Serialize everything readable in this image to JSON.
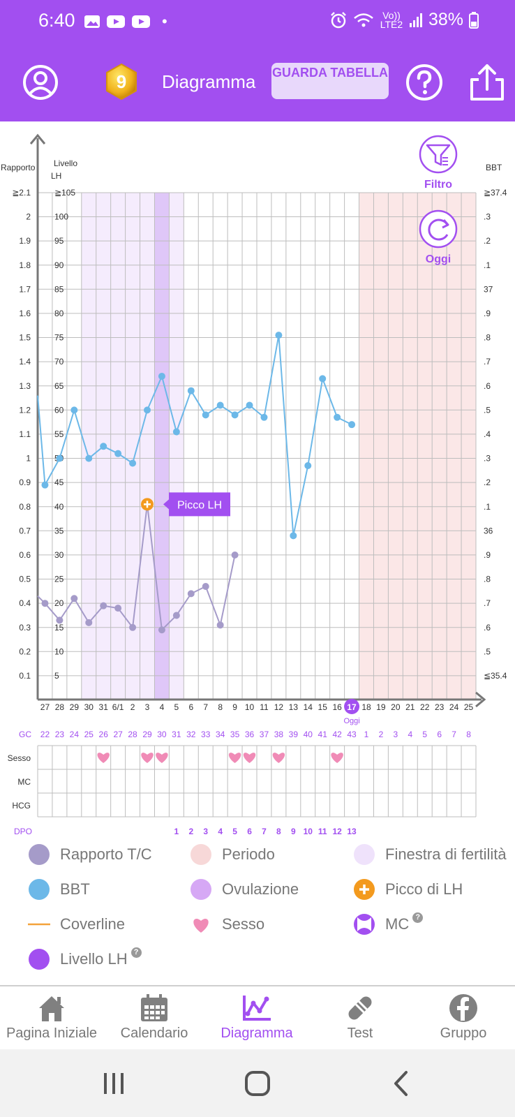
{
  "status_bar": {
    "time": "6:40",
    "dot": "•",
    "network": "Vo)) LTE2",
    "battery": "38%",
    "icons": [
      "gallery-icon",
      "youtube-icon",
      "youtube-icon",
      "alarm-icon",
      "wifi-icon",
      "signal-icon",
      "battery-icon"
    ]
  },
  "header": {
    "level_badge": "9",
    "title": "Diagramma",
    "table_button": "GUARDA TABELLA",
    "icons": [
      "profile-icon",
      "help-icon",
      "share-icon"
    ]
  },
  "chart": {
    "left_axis_title": "Rapporto",
    "lh_axis_title_1": "Livello",
    "lh_axis_title_2": "LH",
    "right_axis_title": "BBT",
    "ratio_ticks": [
      "≧2.1",
      "2",
      "1.9",
      "1.8",
      "1.7",
      "1.6",
      "1.5",
      "1.4",
      "1.3",
      "1.2",
      "1.1",
      "1",
      "0.9",
      "0.8",
      "0.7",
      "0.6",
      "0.5",
      "0.4",
      "0.3",
      "0.2",
      "0.1"
    ],
    "lh_ticks": [
      "≧105",
      "100",
      "95",
      "90",
      "85",
      "80",
      "75",
      "70",
      "65",
      "60",
      "55",
      "50",
      "45",
      "40",
      "35",
      "30",
      "25",
      "20",
      "15",
      "10",
      "5"
    ],
    "bbt_ticks": [
      "≧37.4",
      ".3",
      ".2",
      ".1",
      "37",
      ".9",
      ".8",
      ".7",
      ".6",
      ".5",
      ".4",
      ".3",
      ".2",
      ".1",
      "36",
      ".9",
      ".8",
      ".7",
      ".6",
      ".5",
      "≦35.4"
    ],
    "filter_label": "Filtro",
    "today_button_label": "Oggi",
    "lh_peak_label": "Picco LH",
    "dates": [
      "27",
      "28",
      "29",
      "30",
      "31",
      "6/1",
      "2",
      "3",
      "4",
      "5",
      "6",
      "7",
      "8",
      "9",
      "10",
      "11",
      "12",
      "13",
      "14",
      "15",
      "16",
      "17",
      "18",
      "19",
      "20",
      "21",
      "22",
      "23",
      "24",
      "25"
    ],
    "today_index": 21,
    "today_caption": "Oggi",
    "gc_label": "GC",
    "cycle_days": [
      "22",
      "23",
      "24",
      "25",
      "26",
      "27",
      "28",
      "29",
      "30",
      "31",
      "32",
      "33",
      "34",
      "35",
      "36",
      "37",
      "38",
      "39",
      "40",
      "41",
      "42",
      "43",
      "1",
      "2",
      "3",
      "4",
      "5",
      "6",
      "7",
      "8"
    ],
    "row_labels": [
      "Sesso",
      "MC",
      "HCG"
    ],
    "sex_days": [
      4,
      7,
      8,
      13,
      14,
      16,
      20
    ],
    "dpo_label": "DPO",
    "dpo_values": [
      "",
      "",
      "",
      "",
      "",
      "",
      "",
      "",
      "",
      "1",
      "2",
      "3",
      "4",
      "5",
      "6",
      "7",
      "8",
      "9",
      "10",
      "11",
      "12",
      "13",
      "",
      "",
      "",
      "",
      "",
      "",
      "",
      ""
    ],
    "fertile_window_days": [
      3,
      4,
      5,
      6,
      7,
      9
    ],
    "ovulation_days": [
      8
    ],
    "period_days": [
      22,
      23,
      24,
      25,
      26,
      27,
      28,
      29
    ],
    "lh_peak_day": 7
  },
  "chart_data": {
    "type": "line",
    "x": [
      "27",
      "28",
      "29",
      "30",
      "31",
      "6/1",
      "2",
      "3",
      "4",
      "5",
      "6",
      "7",
      "8",
      "9",
      "10",
      "11",
      "12",
      "13",
      "14",
      "15",
      "16",
      "17",
      "18",
      "19",
      "20",
      "21",
      "22",
      "23",
      "24",
      "25"
    ],
    "series": [
      {
        "name": "BBT",
        "unit": "°C",
        "color": "#6cb8e8",
        "values": [
          36.19,
          36.3,
          36.5,
          36.3,
          36.35,
          36.32,
          36.28,
          36.5,
          36.64,
          36.41,
          36.58,
          36.48,
          36.52,
          36.48,
          36.52,
          36.47,
          36.81,
          35.98,
          36.27,
          36.63,
          36.47,
          36.44,
          null,
          null,
          null,
          null,
          null,
          null,
          null,
          null
        ]
      },
      {
        "name": "Rapporto T/C",
        "color": "#a59bc9",
        "values": [
          0.4,
          0.33,
          0.42,
          0.32,
          0.39,
          0.38,
          0.3,
          0.81,
          0.29,
          0.35,
          0.44,
          0.47,
          0.31,
          0.6,
          null,
          null,
          null,
          null,
          null,
          null,
          null,
          null,
          null,
          null,
          null,
          null,
          null,
          null,
          null,
          null
        ]
      }
    ],
    "ratio_axis": [
      0.1,
      2.1
    ],
    "bbt_axis": [
      35.4,
      37.4
    ],
    "lh_axis": [
      5,
      105
    ],
    "grid": true
  },
  "legend": [
    {
      "label": "Rapporto T/C",
      "symbol": "dot",
      "color": "#a59bc9"
    },
    {
      "label": "Periodo",
      "symbol": "dot",
      "color": "#f7d8d8"
    },
    {
      "label": "Finestra di fertilità",
      "symbol": "dot",
      "color": "#efe2fb"
    },
    {
      "label": "BBT",
      "symbol": "dot",
      "color": "#6cb8e8"
    },
    {
      "label": "Ovulazione",
      "symbol": "dot",
      "color": "#d6a8f5"
    },
    {
      "label": "Picco di LH",
      "symbol": "plus",
      "color": "#f39a1e"
    },
    {
      "label": "Coverline",
      "symbol": "line",
      "color": "#f3a23a"
    },
    {
      "label": "Sesso",
      "symbol": "heart",
      "color": "#f08bb6"
    },
    {
      "label": "MC",
      "symbol": "mc",
      "color": "#a24ff0",
      "help": "?"
    },
    {
      "label": "Livello LH",
      "symbol": "dot",
      "color": "#a24ff0",
      "help": "?"
    }
  ],
  "nav": [
    {
      "label": "Pagina Iniziale",
      "icon": "home-icon"
    },
    {
      "label": "Calendario",
      "icon": "calendar-icon"
    },
    {
      "label": "Diagramma",
      "icon": "chart-icon",
      "active": true
    },
    {
      "label": "Test",
      "icon": "test-strip-icon"
    },
    {
      "label": "Gruppo",
      "icon": "facebook-icon"
    }
  ]
}
